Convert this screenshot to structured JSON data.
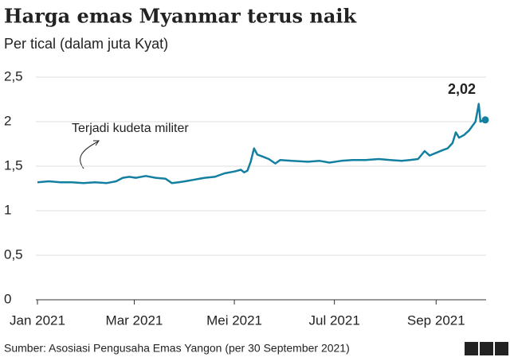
{
  "chart_data": {
    "type": "line",
    "title": "Harga emas Myanmar terus naik",
    "subtitle": "Per tical (dalam juta Kyat)",
    "annotation": "Terjadi kudeta militer",
    "source": "Sumber: Asosiasi Pengusaha Emas Yangon (per 30 September 2021)",
    "color": "#1380a1",
    "grid": true,
    "x": [
      0,
      7,
      14,
      21,
      28,
      35,
      42,
      48,
      52,
      56,
      60,
      66,
      72,
      78,
      82,
      86,
      90,
      96,
      102,
      108,
      114,
      120,
      124,
      126,
      128,
      130,
      132,
      134,
      137,
      141,
      145,
      148,
      155,
      165,
      172,
      178,
      185,
      192,
      200,
      208,
      215,
      222,
      227,
      232,
      236,
      239,
      243,
      247,
      250,
      253,
      255,
      257,
      260,
      263,
      267,
      269,
      270,
      272
    ],
    "values": [
      1.32,
      1.33,
      1.32,
      1.32,
      1.31,
      1.32,
      1.31,
      1.33,
      1.37,
      1.38,
      1.37,
      1.39,
      1.37,
      1.36,
      1.31,
      1.32,
      1.33,
      1.35,
      1.37,
      1.38,
      1.42,
      1.44,
      1.46,
      1.43,
      1.45,
      1.55,
      1.7,
      1.63,
      1.61,
      1.58,
      1.53,
      1.57,
      1.56,
      1.55,
      1.56,
      1.54,
      1.56,
      1.57,
      1.57,
      1.58,
      1.57,
      1.56,
      1.57,
      1.58,
      1.67,
      1.62,
      1.65,
      1.68,
      1.7,
      1.76,
      1.88,
      1.82,
      1.85,
      1.9,
      2.0,
      2.2,
      2.0,
      2.02
    ],
    "value_labels": [
      null,
      null,
      null,
      null,
      null,
      null,
      null,
      null,
      null,
      null,
      null,
      null,
      null,
      null,
      null,
      null,
      null,
      null,
      null,
      null,
      null,
      null,
      null,
      null,
      null,
      null,
      null,
      null,
      null,
      null,
      null,
      null,
      null,
      null,
      null,
      null,
      null,
      null,
      null,
      null,
      null,
      null,
      null,
      null,
      null,
      null,
      null,
      null,
      null,
      null,
      null,
      null,
      null,
      null,
      null,
      null,
      null,
      "2,02"
    ],
    "xlim": [
      0,
      272
    ],
    "xticks": [
      {
        "value": 0,
        "label": "Jan 2021"
      },
      {
        "value": 59,
        "label": "Mar 2021"
      },
      {
        "value": 120,
        "label": "Mei 2021"
      },
      {
        "value": 181,
        "label": "Jul 2021"
      },
      {
        "value": 243,
        "label": "Sep 2021"
      }
    ],
    "ylim": [
      0,
      2.5
    ],
    "yticks": [
      0,
      {
        "value": 0.5,
        "label": "0,5"
      },
      1,
      {
        "value": 1.5,
        "label": "1,5"
      },
      2,
      {
        "value": 2.5,
        "label": "2,5"
      }
    ]
  },
  "brand": [
    "B",
    "B",
    "C"
  ]
}
